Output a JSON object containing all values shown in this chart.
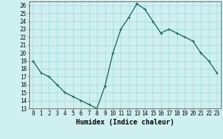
{
  "x": [
    0,
    1,
    2,
    3,
    4,
    5,
    6,
    7,
    8,
    9,
    10,
    11,
    12,
    13,
    14,
    15,
    16,
    17,
    18,
    19,
    20,
    21,
    22,
    23
  ],
  "y": [
    19,
    17.5,
    17,
    16,
    15,
    14.5,
    14,
    13.5,
    13,
    15.8,
    20,
    23,
    24.5,
    26.2,
    25.5,
    24,
    22.5,
    23,
    22.5,
    22,
    21.5,
    20,
    19,
    17.5
  ],
  "line_color": "#1a6b5a",
  "marker": "+",
  "marker_color": "#1a6b5a",
  "bg_color": "#cef0f0",
  "grid_color": "#a8dada",
  "xlabel": "Humidex (Indice chaleur)",
  "xlim": [
    -0.5,
    23.5
  ],
  "ylim": [
    13,
    26.5
  ],
  "yticks": [
    13,
    14,
    15,
    16,
    17,
    18,
    19,
    20,
    21,
    22,
    23,
    24,
    25,
    26
  ],
  "xticks": [
    0,
    1,
    2,
    3,
    4,
    5,
    6,
    7,
    8,
    9,
    10,
    11,
    12,
    13,
    14,
    15,
    16,
    17,
    18,
    19,
    20,
    21,
    22,
    23
  ],
  "tick_fontsize": 5.5,
  "xlabel_fontsize": 7,
  "marker_size": 3.5,
  "line_width": 1.0
}
